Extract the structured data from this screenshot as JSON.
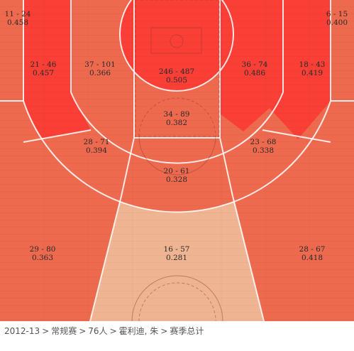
{
  "breadcrumb": {
    "items": [
      "2012-13",
      "常规赛",
      "76人",
      "霍利迪, 朱",
      "赛季总计"
    ],
    "separator": ">"
  },
  "colors": {
    "hot": "#fa3f36",
    "warm": "#ee6a4f",
    "cool": "#efb592",
    "lines": "#ffffff",
    "text": "#2a2a2a"
  },
  "chart_data": {
    "type": "heatmap",
    "title": "",
    "zones": [
      {
        "id": "corner-left",
        "label": "11 - 24",
        "pct": "0.458",
        "made": 11,
        "att": 24,
        "heat": "warm"
      },
      {
        "id": "corner-right",
        "label": "6 - 15",
        "pct": "0.400",
        "made": 6,
        "att": 15,
        "heat": "warm"
      },
      {
        "id": "mid-baseline-left",
        "label": "21 - 46",
        "pct": "0.457",
        "made": 21,
        "att": 46,
        "heat": "hot"
      },
      {
        "id": "mid-wing-left",
        "label": "37 - 101",
        "pct": "0.366",
        "made": 37,
        "att": 101,
        "heat": "warm"
      },
      {
        "id": "restricted-area",
        "label": "246 - 487",
        "pct": "0.505",
        "made": 246,
        "att": 487,
        "heat": "hot"
      },
      {
        "id": "mid-wing-right",
        "label": "36 - 74",
        "pct": "0.486",
        "made": 36,
        "att": 74,
        "heat": "hot"
      },
      {
        "id": "mid-baseline-right",
        "label": "18 - 43",
        "pct": "0.419",
        "made": 18,
        "att": 43,
        "heat": "hot"
      },
      {
        "id": "paint-non-ra",
        "label": "34 - 89",
        "pct": "0.382",
        "made": 34,
        "att": 89,
        "heat": "warm"
      },
      {
        "id": "mid-elbow-left",
        "label": "28 - 71",
        "pct": "0.394",
        "made": 28,
        "att": 71,
        "heat": "warm"
      },
      {
        "id": "mid-elbow-right",
        "label": "23 - 68",
        "pct": "0.338",
        "made": 23,
        "att": 68,
        "heat": "warm"
      },
      {
        "id": "mid-top",
        "label": "20 - 61",
        "pct": "0.328",
        "made": 20,
        "att": 61,
        "heat": "warm"
      },
      {
        "id": "three-left",
        "label": "29 - 80",
        "pct": "0.363",
        "made": 29,
        "att": 80,
        "heat": "warm"
      },
      {
        "id": "three-top",
        "label": "16 - 57",
        "pct": "0.281",
        "made": 16,
        "att": 57,
        "heat": "cool"
      },
      {
        "id": "three-right",
        "label": "28 - 67",
        "pct": "0.418",
        "made": 28,
        "att": 67,
        "heat": "warm"
      }
    ]
  }
}
